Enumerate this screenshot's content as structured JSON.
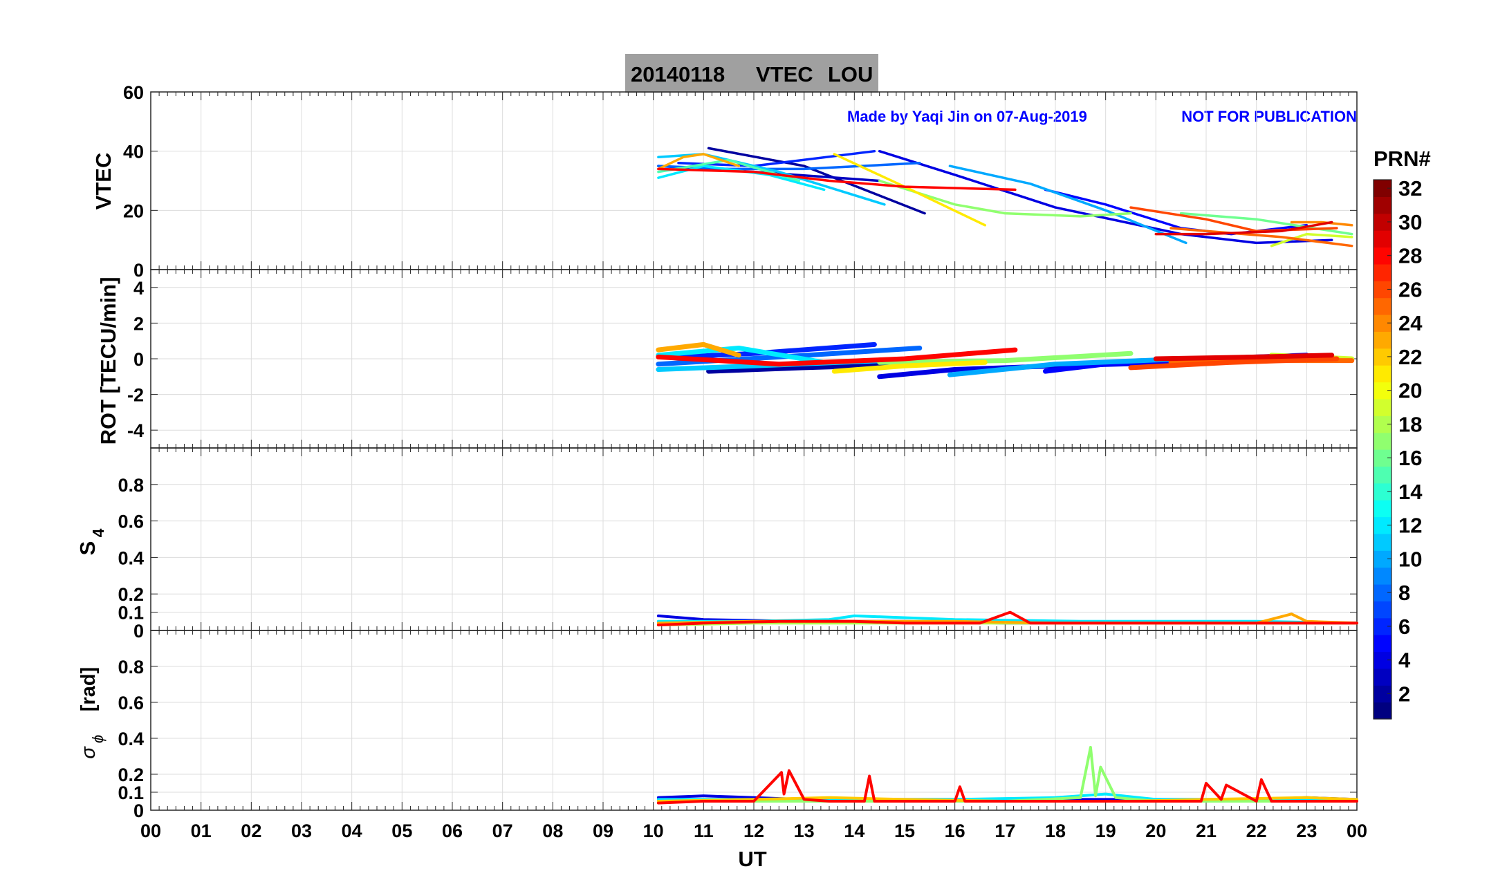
{
  "title": {
    "date": "20140118",
    "quantity": "VTEC",
    "station": "LOU"
  },
  "notice": {
    "credit": "Made by Yaqi Jin on 07-Aug-2019",
    "warning": "NOT FOR PUBLICATION"
  },
  "colors": {
    "notice": "#0000ff",
    "title_box": "#a0a0a0",
    "grid": "#dcdcdc"
  },
  "colorbar": {
    "label": "PRN#",
    "range": [
      1,
      32
    ],
    "ticks": [
      "2",
      "4",
      "6",
      "8",
      "10",
      "12",
      "14",
      "16",
      "18",
      "20",
      "22",
      "24",
      "26",
      "28",
      "30",
      "32"
    ],
    "colormap": "jet"
  },
  "chart_data": [
    {
      "type": "line",
      "panel": "vtec",
      "ylabel": "VTEC",
      "xlabel": "",
      "xlim": [
        0,
        24
      ],
      "ylim": [
        0,
        60
      ],
      "yticks": [
        "0",
        "20",
        "40",
        "60"
      ],
      "series": [
        {
          "name": "PRN 2",
          "x": [
            11.1,
            13.0,
            15.4
          ],
          "y": [
            41,
            35,
            19
          ]
        },
        {
          "name": "PRN 3",
          "x": [
            10.1,
            12.0,
            14.5
          ],
          "y": [
            35,
            33,
            30
          ]
        },
        {
          "name": "PRN 4",
          "x": [
            14.5,
            16.0,
            18.0,
            20.5,
            22.0,
            23.5
          ],
          "y": [
            40,
            32,
            21,
            12,
            9,
            10
          ]
        },
        {
          "name": "PRN 5",
          "x": [
            17.8,
            19.0,
            20.5,
            21.5,
            23.0
          ],
          "y": [
            27,
            22,
            14,
            12,
            15
          ]
        },
        {
          "name": "PRN 6",
          "x": [
            10.5,
            12.0,
            14.4
          ],
          "y": [
            36,
            35,
            40
          ]
        },
        {
          "name": "PRN 8",
          "x": [
            10.1,
            11.5,
            13.0,
            15.3
          ],
          "y": [
            35,
            34,
            34,
            36
          ]
        },
        {
          "name": "PRN 10",
          "x": [
            15.9,
            17.5,
            19.0,
            20.6
          ],
          "y": [
            35,
            29,
            20,
            9
          ]
        },
        {
          "name": "PRN 11",
          "x": [
            10.1,
            11.0,
            12.5,
            14.6
          ],
          "y": [
            38,
            39,
            33,
            22
          ]
        },
        {
          "name": "PRN 12",
          "x": [
            10.1,
            11.0,
            12.3,
            13.4
          ],
          "y": [
            31,
            35,
            32,
            27
          ]
        },
        {
          "name": "PRN 15",
          "x": [
            10.1,
            11.5,
            12.9
          ],
          "y": [
            33,
            37,
            30
          ]
        },
        {
          "name": "PRN 16",
          "x": [
            20.5,
            22.0,
            23.9
          ],
          "y": [
            19,
            17,
            12
          ]
        },
        {
          "name": "PRN 17",
          "x": [
            14.5,
            16.0,
            17.0,
            18.5,
            19.5
          ],
          "y": [
            30,
            22,
            19,
            18,
            19
          ]
        },
        {
          "name": "PRN 19",
          "x": [
            22.3,
            23.0,
            23.9
          ],
          "y": [
            8,
            12,
            11
          ]
        },
        {
          "name": "PRN 21",
          "x": [
            13.6,
            15.0,
            16.6
          ],
          "y": [
            39,
            28,
            15
          ]
        },
        {
          "name": "PRN 23",
          "x": [
            10.1,
            10.6,
            11.0,
            11.7
          ],
          "y": [
            34,
            38,
            39,
            35
          ]
        },
        {
          "name": "PRN 24",
          "x": [
            22.7,
            23.3,
            23.9
          ],
          "y": [
            16,
            16,
            15
          ]
        },
        {
          "name": "PRN 25",
          "x": [
            20.3,
            21.0,
            22.5,
            23.9
          ],
          "y": [
            14,
            13,
            11,
            8
          ]
        },
        {
          "name": "PRN 26",
          "x": [
            19.5,
            21.0,
            22.0,
            23.6
          ],
          "y": [
            21,
            17,
            13,
            14
          ]
        },
        {
          "name": "PRN 28",
          "x": [
            10.1,
            12.0,
            13.5,
            15.0,
            17.2
          ],
          "y": [
            34,
            33,
            30,
            28,
            27
          ]
        },
        {
          "name": "PRN 29",
          "x": [
            20.0,
            21.0,
            22.5,
            23.5
          ],
          "y": [
            12,
            12,
            13,
            16
          ]
        }
      ]
    },
    {
      "type": "scatter",
      "panel": "rot",
      "ylabel": "ROT [TECU/min]",
      "xlabel": "",
      "xlim": [
        0,
        24
      ],
      "ylim": [
        -5,
        5
      ],
      "yticks": [
        "-4",
        "-2",
        "0",
        "2",
        "4"
      ],
      "series": [
        {
          "name": "PRN 2",
          "x": [
            11.1,
            13.0,
            15.4
          ],
          "y": [
            -0.7,
            -0.5,
            -0.3
          ]
        },
        {
          "name": "PRN 4",
          "x": [
            14.5,
            16.0,
            18.0,
            20.5,
            23.5
          ],
          "y": [
            -1.0,
            -0.6,
            -0.4,
            -0.2,
            0.1
          ]
        },
        {
          "name": "PRN 5",
          "x": [
            17.8,
            19.0,
            21.0,
            23.0
          ],
          "y": [
            -0.7,
            -0.3,
            0.0,
            0.2
          ]
        },
        {
          "name": "PRN 6",
          "x": [
            10.5,
            12.0,
            14.4
          ],
          "y": [
            0.1,
            0.3,
            0.8
          ]
        },
        {
          "name": "PRN 8",
          "x": [
            10.1,
            12.5,
            15.3
          ],
          "y": [
            -0.3,
            0.1,
            0.6
          ]
        },
        {
          "name": "PRN 10",
          "x": [
            15.9,
            18.0,
            20.6
          ],
          "y": [
            -0.9,
            -0.3,
            0.0
          ]
        },
        {
          "name": "PRN 11",
          "x": [
            10.1,
            12.0,
            14.6
          ],
          "y": [
            -0.6,
            -0.4,
            -0.1
          ]
        },
        {
          "name": "PRN 12",
          "x": [
            10.1,
            11.7,
            13.4
          ],
          "y": [
            0.2,
            0.6,
            -0.2
          ]
        },
        {
          "name": "PRN 17",
          "x": [
            14.5,
            17.0,
            19.5
          ],
          "y": [
            -0.2,
            -0.1,
            0.3
          ]
        },
        {
          "name": "PRN 19",
          "x": [
            22.3,
            23.9
          ],
          "y": [
            0.2,
            0.0
          ]
        },
        {
          "name": "PRN 21",
          "x": [
            13.6,
            15.0,
            16.6
          ],
          "y": [
            -0.7,
            -0.4,
            -0.2
          ]
        },
        {
          "name": "PRN 23",
          "x": [
            10.1,
            11.0,
            11.7
          ],
          "y": [
            0.5,
            0.8,
            0.2
          ]
        },
        {
          "name": "PRN 25",
          "x": [
            20.3,
            22.0,
            23.9
          ],
          "y": [
            -0.2,
            -0.1,
            -0.1
          ]
        },
        {
          "name": "PRN 26",
          "x": [
            19.5,
            21.5,
            23.6
          ],
          "y": [
            -0.5,
            -0.2,
            0.0
          ]
        },
        {
          "name": "PRN 28",
          "x": [
            10.1,
            12.5,
            15.0,
            17.2
          ],
          "y": [
            0.1,
            -0.3,
            0.0,
            0.5
          ]
        },
        {
          "name": "PRN 29",
          "x": [
            20.0,
            22.0,
            23.5
          ],
          "y": [
            0.0,
            0.1,
            0.2
          ]
        }
      ]
    },
    {
      "type": "line",
      "panel": "s4",
      "ylabel_main": "S",
      "ylabel_sub": "4",
      "xlabel": "",
      "xlim": [
        0,
        24
      ],
      "ylim": [
        0,
        1
      ],
      "yticks": [
        "0",
        "0.1",
        "0.2",
        "0.4",
        "0.6",
        "0.8"
      ],
      "series": [
        {
          "name": "PRN 4",
          "x": [
            10.1,
            11.0,
            13.0,
            15.0,
            17.0,
            19.0,
            21.0,
            23.0,
            24.0
          ],
          "y": [
            0.08,
            0.06,
            0.05,
            0.05,
            0.04,
            0.04,
            0.04,
            0.04,
            0.04
          ]
        },
        {
          "name": "PRN 12",
          "x": [
            10.1,
            12.0,
            13.5,
            14.0,
            16.0,
            18.5,
            20.0,
            22.0,
            24.0
          ],
          "y": [
            0.05,
            0.05,
            0.06,
            0.08,
            0.06,
            0.05,
            0.05,
            0.05,
            0.04
          ]
        },
        {
          "name": "PRN 18",
          "x": [
            10.1,
            12.0,
            14.0,
            16.0,
            18.0,
            20.0,
            22.0,
            24.0
          ],
          "y": [
            0.03,
            0.04,
            0.04,
            0.04,
            0.04,
            0.04,
            0.04,
            0.04
          ]
        },
        {
          "name": "PRN 23",
          "x": [
            10.1,
            12.0,
            14.0,
            16.0,
            18.0,
            20.0,
            22.0,
            22.7,
            23.0,
            24.0
          ],
          "y": [
            0.04,
            0.05,
            0.05,
            0.05,
            0.04,
            0.04,
            0.04,
            0.09,
            0.05,
            0.04
          ]
        },
        {
          "name": "PRN 28",
          "x": [
            10.1,
            11.0,
            12.5,
            14.0,
            15.0,
            16.5,
            17.1,
            17.5,
            19.0,
            20.5,
            22.0,
            24.0
          ],
          "y": [
            0.03,
            0.04,
            0.05,
            0.05,
            0.04,
            0.04,
            0.1,
            0.04,
            0.04,
            0.04,
            0.04,
            0.04
          ]
        }
      ]
    },
    {
      "type": "line",
      "panel": "sigma_phi",
      "ylabel_main": "σ",
      "ylabel_sub": "ϕ",
      "ylabel_unit": "[rad]",
      "xlabel": "UT",
      "xlim": [
        0,
        24
      ],
      "ylim": [
        0,
        1
      ],
      "yticks": [
        "0",
        "0.1",
        "0.2",
        "0.4",
        "0.6",
        "0.8"
      ],
      "xticks": [
        "00",
        "01",
        "02",
        "03",
        "04",
        "05",
        "06",
        "07",
        "08",
        "09",
        "10",
        "11",
        "12",
        "13",
        "14",
        "15",
        "16",
        "17",
        "18",
        "19",
        "20",
        "21",
        "22",
        "23",
        "00"
      ],
      "series": [
        {
          "name": "PRN 4",
          "x": [
            10.1,
            11.0,
            12.0,
            13.0,
            14.0,
            15.0,
            16.0,
            17.0,
            18.0,
            19.0,
            20.0,
            21.0,
            22.0,
            23.0,
            24.0
          ],
          "y": [
            0.07,
            0.08,
            0.07,
            0.06,
            0.06,
            0.06,
            0.06,
            0.06,
            0.06,
            0.06,
            0.06,
            0.06,
            0.06,
            0.07,
            0.06
          ]
        },
        {
          "name": "PRN 12",
          "x": [
            10.1,
            12.0,
            14.0,
            16.0,
            18.0,
            19.0,
            20.0,
            22.0,
            24.0
          ],
          "y": [
            0.06,
            0.06,
            0.06,
            0.06,
            0.07,
            0.09,
            0.06,
            0.06,
            0.06
          ]
        },
        {
          "name": "PRN 17",
          "x": [
            10.1,
            12.0,
            14.0,
            17.0,
            18.5,
            18.7,
            18.8,
            18.9,
            19.2,
            20.0,
            22.0,
            24.0
          ],
          "y": [
            0.05,
            0.05,
            0.05,
            0.05,
            0.07,
            0.35,
            0.08,
            0.24,
            0.07,
            0.05,
            0.05,
            0.05
          ]
        },
        {
          "name": "PRN 22",
          "x": [
            10.1,
            12.0,
            13.5,
            15.0,
            17.0,
            19.5,
            21.0,
            23.0,
            24.0
          ],
          "y": [
            0.05,
            0.06,
            0.07,
            0.06,
            0.05,
            0.05,
            0.06,
            0.07,
            0.06
          ]
        },
        {
          "name": "PRN 28",
          "x": [
            10.1,
            11.0,
            12.0,
            12.55,
            12.6,
            12.7,
            13.0,
            13.5,
            14.2,
            14.3,
            14.4,
            15.0,
            16.0,
            16.1,
            16.2,
            17.0,
            17.5,
            18.0,
            20.0,
            20.9,
            21.0,
            21.3,
            21.4,
            22.0,
            22.1,
            22.3,
            23.0,
            24.0
          ],
          "y": [
            0.04,
            0.05,
            0.05,
            0.21,
            0.09,
            0.22,
            0.06,
            0.05,
            0.05,
            0.19,
            0.05,
            0.05,
            0.05,
            0.13,
            0.05,
            0.05,
            0.05,
            0.05,
            0.05,
            0.05,
            0.15,
            0.06,
            0.14,
            0.05,
            0.17,
            0.05,
            0.05,
            0.05
          ]
        }
      ]
    }
  ]
}
